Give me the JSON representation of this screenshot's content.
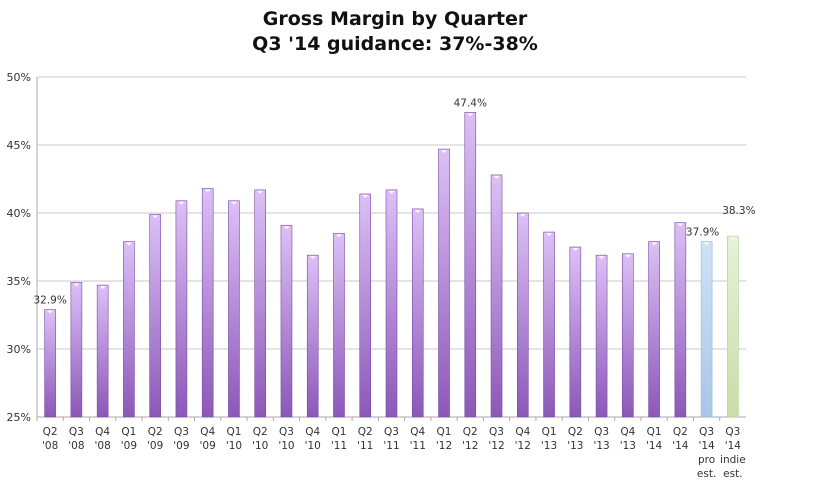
{
  "chart_data": {
    "type": "bar",
    "title": "Gross Margin by Quarter",
    "subtitle": "Q3 '14 guidance: 37%-38%",
    "xlabel": "",
    "ylabel": "",
    "ylim": [
      25,
      50
    ],
    "y_ticks": [
      "25%",
      "30%",
      "35%",
      "40%",
      "45%",
      "50%"
    ],
    "y_tick_values": [
      25,
      30,
      35,
      40,
      45,
      50
    ],
    "grid": true,
    "categories": [
      [
        "Q2",
        "'08"
      ],
      [
        "Q3",
        "'08"
      ],
      [
        "Q4",
        "'08"
      ],
      [
        "Q1",
        "'09"
      ],
      [
        "Q2",
        "'09"
      ],
      [
        "Q3",
        "'09"
      ],
      [
        "Q4",
        "'09"
      ],
      [
        "Q1",
        "'10"
      ],
      [
        "Q2",
        "'10"
      ],
      [
        "Q3",
        "'10"
      ],
      [
        "Q4",
        "'10"
      ],
      [
        "Q1",
        "'11"
      ],
      [
        "Q2",
        "'11"
      ],
      [
        "Q3",
        "'11"
      ],
      [
        "Q4",
        "'11"
      ],
      [
        "Q1",
        "'12"
      ],
      [
        "Q2",
        "'12"
      ],
      [
        "Q3",
        "'12"
      ],
      [
        "Q4",
        "'12"
      ],
      [
        "Q1",
        "'13"
      ],
      [
        "Q2",
        "'13"
      ],
      [
        "Q3",
        "'13"
      ],
      [
        "Q4",
        "'13"
      ],
      [
        "Q1",
        "'14"
      ],
      [
        "Q2",
        "'14"
      ],
      [
        "Q3",
        "'14",
        "pro",
        "est."
      ],
      [
        "Q3",
        "'14",
        "indie",
        "est."
      ]
    ],
    "values": [
      32.9,
      34.9,
      34.7,
      37.9,
      39.9,
      40.9,
      41.8,
      40.9,
      41.7,
      39.1,
      36.9,
      38.5,
      41.4,
      41.7,
      40.3,
      44.7,
      47.4,
      42.8,
      40.0,
      38.6,
      37.5,
      36.9,
      37.0,
      37.9,
      39.3,
      37.9,
      38.3
    ],
    "data_labels": {
      "0": "32.9%",
      "16": "47.4%",
      "25": "37.9%",
      "26": "38.3%"
    },
    "bar_colors": {
      "default": "#a77cd0",
      "pro_estimate": "#bcd4ee",
      "indie_estimate": "#d8eac0"
    }
  }
}
